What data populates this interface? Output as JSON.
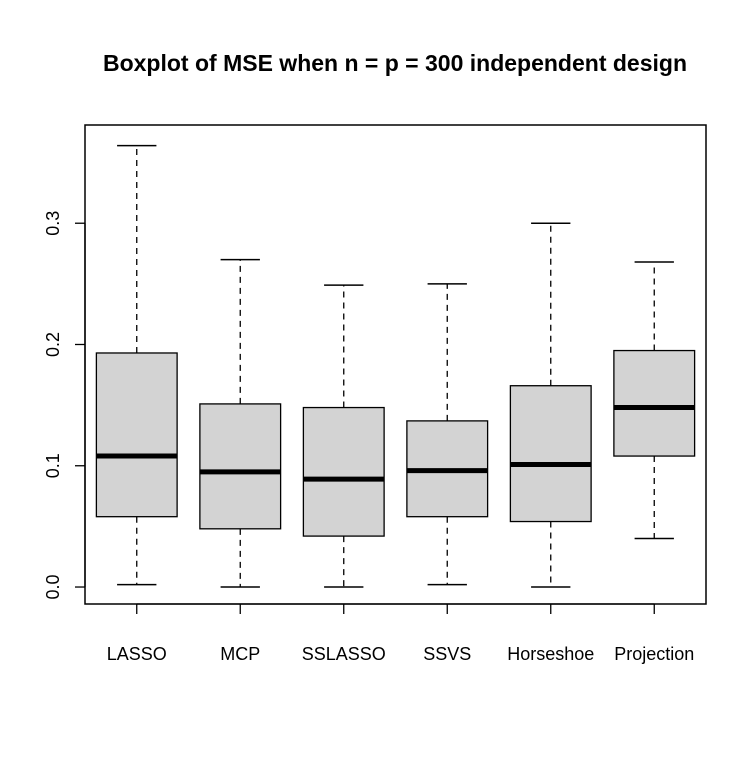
{
  "chart_data": {
    "type": "boxplot",
    "title": "Boxplot of MSE when n = p = 300 independent design",
    "xlabel": "",
    "ylabel": "",
    "ylim": [
      -0.014,
      0.381
    ],
    "yticks": [
      "0.0",
      "0.1",
      "0.2",
      "0.3"
    ],
    "yticks_values": [
      0.0,
      0.1,
      0.2,
      0.3
    ],
    "grid": false,
    "box_fill": "#d3d3d3",
    "categories": [
      "LASSO",
      "MCP",
      "SSLASSO",
      "SSVS",
      "Horseshoe",
      "Projection"
    ],
    "boxes": [
      {
        "label": "LASSO",
        "whisker_low": 0.002,
        "q1": 0.058,
        "median": 0.108,
        "q3": 0.193,
        "whisker_high": 0.364
      },
      {
        "label": "MCP",
        "whisker_low": 0.0,
        "q1": 0.048,
        "median": 0.095,
        "q3": 0.151,
        "whisker_high": 0.27
      },
      {
        "label": "SSLASSO",
        "whisker_low": 0.0,
        "q1": 0.042,
        "median": 0.089,
        "q3": 0.148,
        "whisker_high": 0.249
      },
      {
        "label": "SSVS",
        "whisker_low": 0.002,
        "q1": 0.058,
        "median": 0.096,
        "q3": 0.137,
        "whisker_high": 0.25
      },
      {
        "label": "Horseshoe",
        "whisker_low": 0.0,
        "q1": 0.054,
        "median": 0.101,
        "q3": 0.166,
        "whisker_high": 0.3
      },
      {
        "label": "Projection",
        "whisker_low": 0.04,
        "q1": 0.108,
        "median": 0.148,
        "q3": 0.195,
        "whisker_high": 0.268
      }
    ]
  }
}
